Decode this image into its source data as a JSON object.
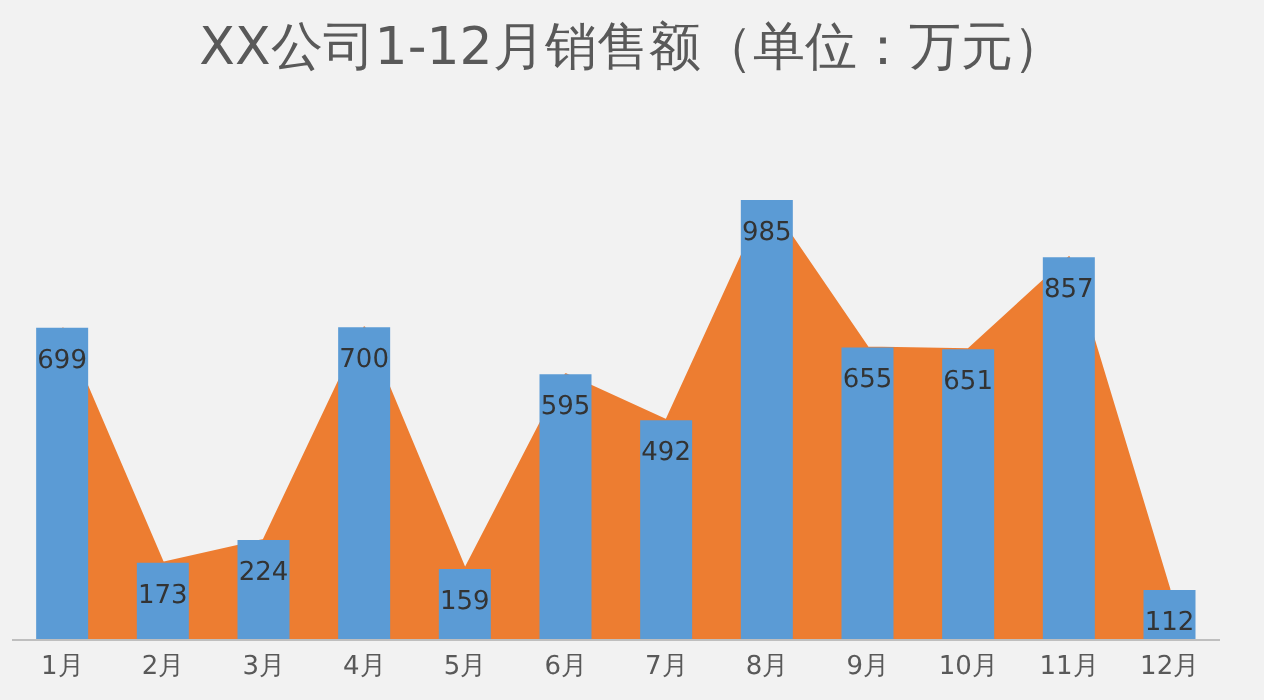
{
  "chart_data": {
    "type": "bar",
    "title": "XX公司1-12月销售额（单位：万元）",
    "categories": [
      "1月",
      "2月",
      "3月",
      "4月",
      "5月",
      "6月",
      "7月",
      "8月",
      "9月",
      "10月",
      "11月",
      "12月"
    ],
    "series": [
      {
        "type": "area",
        "color": "#ed7d31",
        "values": [
          699,
          173,
          224,
          700,
          159,
          595,
          492,
          985,
          655,
          651,
          857,
          112
        ]
      },
      {
        "color": "#5b9bd5",
        "values": [
          699,
          173,
          224,
          700,
          159,
          595,
          492,
          985,
          655,
          651,
          857,
          112
        ],
        "value_labels": [
          "699",
          "173",
          "224",
          "700",
          "159",
          "595",
          "492",
          "985",
          "655",
          "651",
          "857",
          "112"
        ]
      }
    ],
    "legend": false
  }
}
